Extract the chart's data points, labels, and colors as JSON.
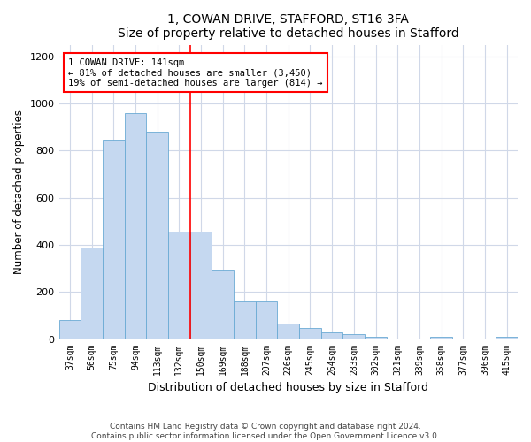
{
  "title": "1, COWAN DRIVE, STAFFORD, ST16 3FA",
  "subtitle": "Size of property relative to detached houses in Stafford",
  "xlabel": "Distribution of detached houses by size in Stafford",
  "ylabel": "Number of detached properties",
  "categories": [
    "37sqm",
    "56sqm",
    "75sqm",
    "94sqm",
    "113sqm",
    "132sqm",
    "150sqm",
    "169sqm",
    "188sqm",
    "207sqm",
    "226sqm",
    "245sqm",
    "264sqm",
    "283sqm",
    "302sqm",
    "321sqm",
    "339sqm",
    "358sqm",
    "377sqm",
    "396sqm",
    "415sqm"
  ],
  "values": [
    80,
    390,
    845,
    960,
    880,
    455,
    455,
    295,
    160,
    160,
    65,
    48,
    28,
    20,
    8,
    0,
    0,
    8,
    0,
    0,
    8
  ],
  "bar_color": "#c5d8f0",
  "bar_edge_color": "#6aaad4",
  "ylim": [
    0,
    1250
  ],
  "yticks": [
    0,
    200,
    400,
    600,
    800,
    1000,
    1200
  ],
  "annotation_title": "1 COWAN DRIVE: 141sqm",
  "annotation_line1": "← 81% of detached houses are smaller (3,450)",
  "annotation_line2": "19% of semi-detached houses are larger (814) →",
  "footer1": "Contains HM Land Registry data © Crown copyright and database right 2024.",
  "footer2": "Contains public sector information licensed under the Open Government Licence v3.0.",
  "background_color": "#ffffff",
  "plot_bg_color": "#ffffff",
  "grid_color": "#d0d8e8"
}
